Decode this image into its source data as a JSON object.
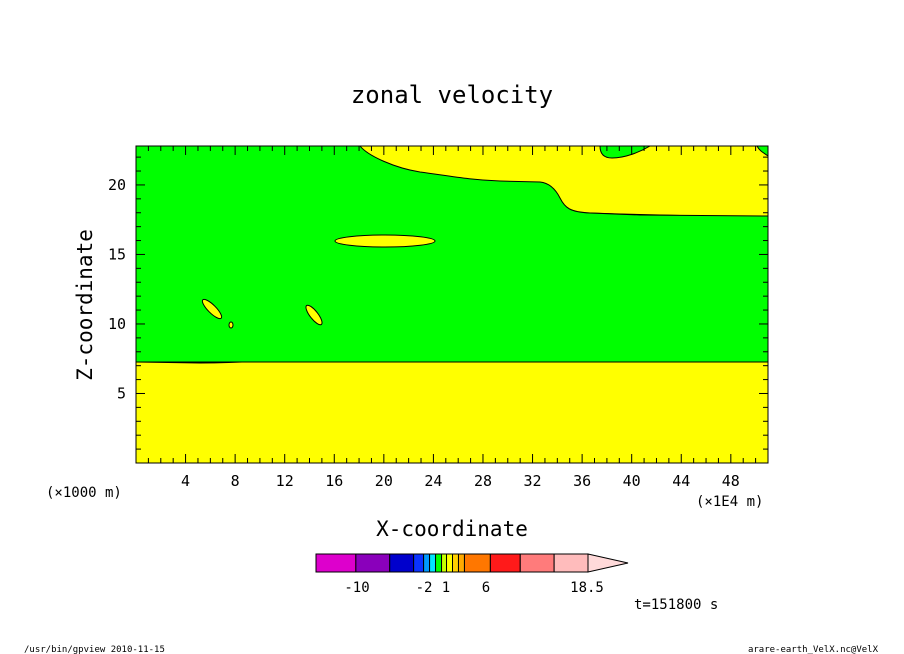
{
  "chart_data": {
    "type": "heatmap",
    "title": "zonal velocity",
    "xlabel": "X-coordinate",
    "ylabel": "Z-coordinate",
    "x_unit": "(×1000 m)",
    "x_scale_note": "(×1E4 m)",
    "xlim": [
      0,
      51
    ],
    "ylim": [
      0,
      22.8
    ],
    "x_ticks": [
      4,
      8,
      12,
      16,
      20,
      24,
      28,
      32,
      36,
      40,
      44,
      48
    ],
    "y_ticks": [
      5,
      10,
      15,
      20
    ],
    "regions": [
      {
        "name": "low",
        "color": "#ffff00",
        "note": "lower layer below ~8"
      },
      {
        "name": "mid",
        "color": "#00ff00",
        "note": "middle band ~8-18"
      },
      {
        "name": "high",
        "color": "#ffff00",
        "note": "upper layer above ~18"
      }
    ],
    "colorbar": {
      "colors": [
        "#dd00cc",
        "#8a00bb",
        "#0000cc",
        "#0a33ff",
        "#0099ff",
        "#00e5ff",
        "#00ff00",
        "#c8ff00",
        "#ffff00",
        "#ffd000",
        "#ffaa00",
        "#ff7700",
        "#ff1a1a",
        "#ff7b7b",
        "#ffbcbc",
        "#ffdada"
      ],
      "tick_labels": [
        "-10",
        "-2",
        "1",
        "6",
        "18.5"
      ]
    },
    "annotation": "t=151800 s"
  },
  "footer": {
    "left": "/usr/bin/gpview  2010-11-15",
    "right": "arare-earth_VelX.nc@VelX"
  }
}
